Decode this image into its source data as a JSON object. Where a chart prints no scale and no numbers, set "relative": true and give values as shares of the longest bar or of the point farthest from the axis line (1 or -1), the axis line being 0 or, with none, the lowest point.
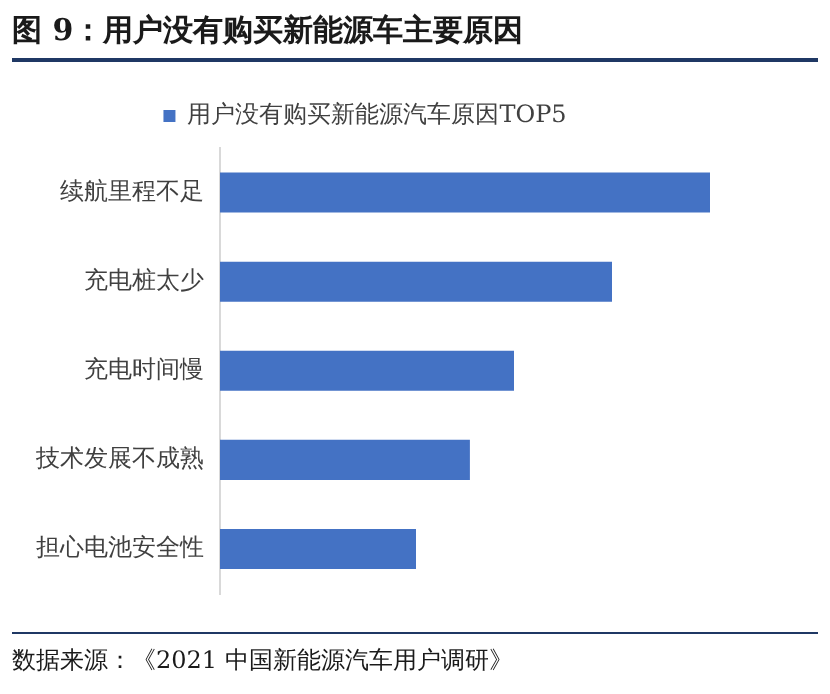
{
  "chart_data": {
    "type": "bar",
    "orientation": "horizontal",
    "relative": true,
    "title": "图  9：用户没有购买新能源车主要原因",
    "categories": [
      "续航里程不足",
      "充电桩太少",
      "充电时间慢",
      "技术发展不成熟",
      "担心电池安全性"
    ],
    "series": [
      {
        "name": "用户没有购买新能源汽车原因TOP5",
        "color": "#4472c4",
        "values": [
          1,
          0.8,
          0.6,
          0.51,
          0.4
        ]
      }
    ],
    "legend": "top",
    "annotations": [
      "数据来源：《2021 中国新能源汽车用户调研》"
    ]
  }
}
